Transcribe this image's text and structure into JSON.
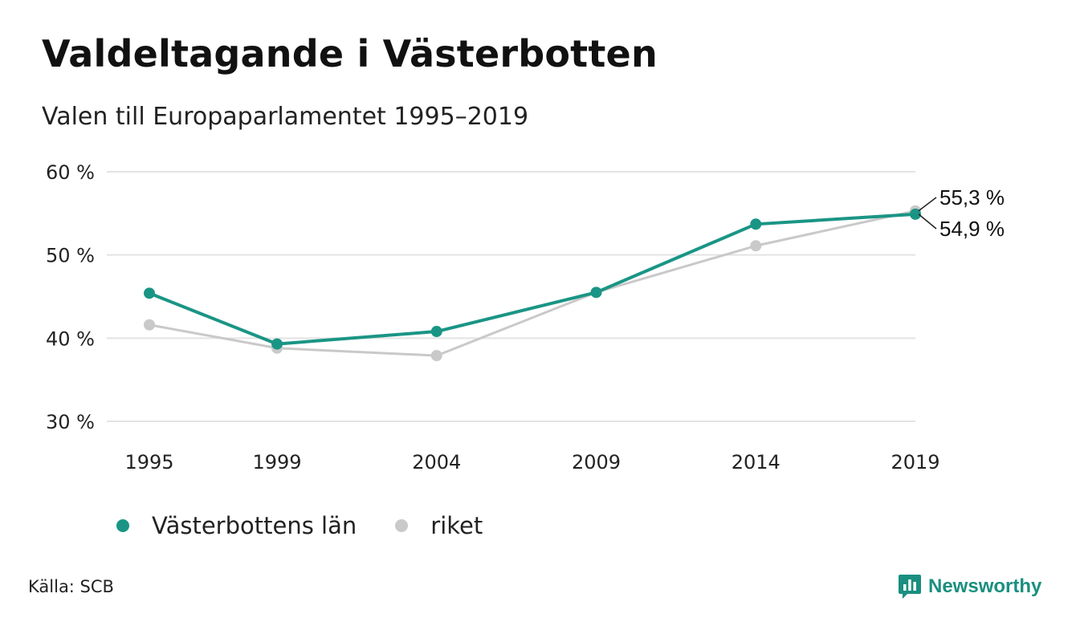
{
  "title": "Valdeltagande i Västerbotten",
  "subtitle": "Valen till Europaparlamentet 1995–2019",
  "source": "Källa: SCB",
  "brand": "Newsworthy",
  "colors": {
    "county": "#1a9585",
    "national": "#c9c9c9",
    "grid": "#e3e3e3"
  },
  "chart_data": {
    "type": "line",
    "x": [
      "1995",
      "1999",
      "2004",
      "2009",
      "2014",
      "2019"
    ],
    "series": [
      {
        "name": "Västerbottens län",
        "values": [
          45.4,
          39.3,
          40.8,
          45.5,
          53.7,
          54.9
        ]
      },
      {
        "name": "riket",
        "values": [
          41.6,
          38.8,
          37.9,
          45.5,
          51.1,
          55.3
        ]
      }
    ],
    "ylim": [
      30,
      60
    ],
    "yticks": [
      "30 %",
      "40 %",
      "50 %",
      "60 %"
    ],
    "end_labels": [
      "55,3 %",
      "54,9 %"
    ],
    "grid": true,
    "legend": "bottom-left"
  }
}
